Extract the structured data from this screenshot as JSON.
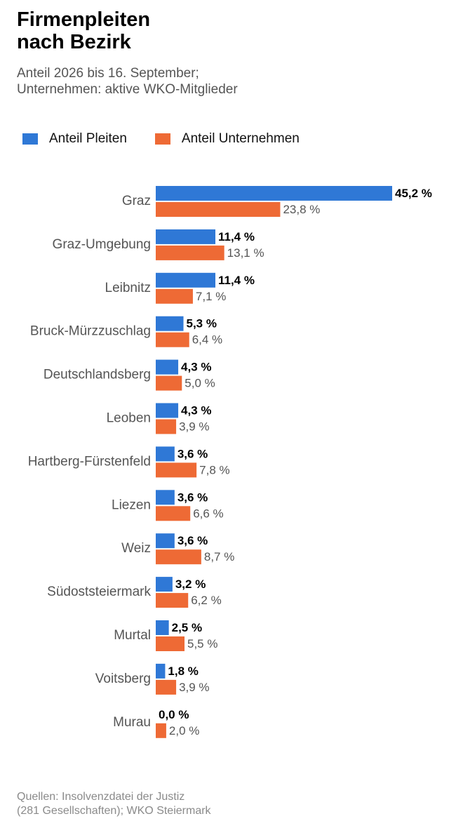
{
  "chart_data": {
    "type": "bar",
    "orientation": "horizontal",
    "title_line1": "Firmenpleiten",
    "title_line2": "nach Bezirk",
    "subtitle_line1": "Anteil 2026 bis 16. September;",
    "subtitle_line2": "Unternehmen: aktive WKO-Mitglieder",
    "categories": [
      "Graz",
      "Graz-Umgebung",
      "Leibnitz",
      "Bruck-Mürzzuschlag",
      "Deutschlandsberg",
      "Leoben",
      "Hartberg-Fürstenfeld",
      "Liezen",
      "Weiz",
      "Südoststeiermark",
      "Murtal",
      "Voitsberg",
      "Murau"
    ],
    "series": [
      {
        "name": "Anteil Pleiten",
        "color": "#2f78d6",
        "values": [
          45.2,
          11.4,
          11.4,
          5.3,
          4.3,
          4.3,
          3.6,
          3.6,
          3.6,
          3.2,
          2.5,
          1.8,
          0.0
        ],
        "labels": [
          "45,2 %",
          "11,4 %",
          "11,4 %",
          "5,3 %",
          "4,3 %",
          "4,3 %",
          "3,6 %",
          "3,6 %",
          "3,6 %",
          "3,2 %",
          "2,5 %",
          "1,8 %",
          "0,0 %"
        ]
      },
      {
        "name": "Anteil Unternehmen",
        "color": "#ee6a35",
        "values": [
          23.8,
          13.1,
          7.1,
          6.4,
          5.0,
          3.9,
          7.8,
          6.6,
          8.7,
          6.2,
          5.5,
          3.9,
          2.0
        ],
        "labels": [
          "23,8 %",
          "13,1 %",
          "7,1 %",
          "6,4 %",
          "5,0 %",
          "3,9 %",
          "7,8 %",
          "6,6 %",
          "8,7 %",
          "6,2 %",
          "5,5 %",
          "3,9 %",
          "2,0 %"
        ]
      }
    ],
    "xlim": [
      0,
      45.2
    ],
    "grid": false,
    "legend_position": "top-left",
    "source_line1": "Quellen: Insolvenzdatei der Justiz",
    "source_line2": "(281 Gesellschaften); WKO Steiermark"
  }
}
